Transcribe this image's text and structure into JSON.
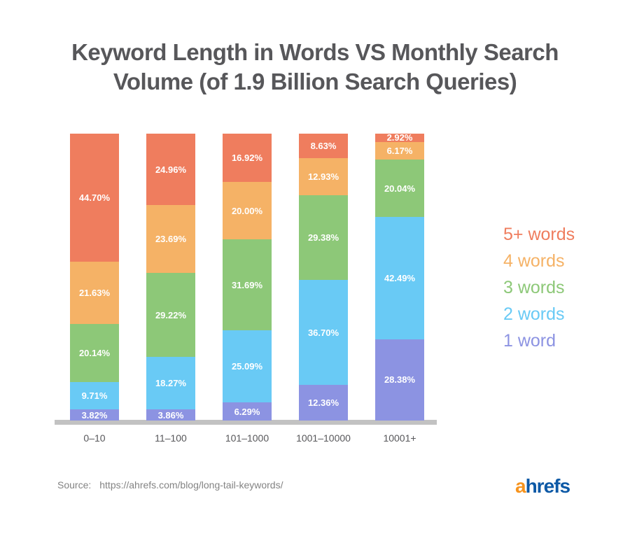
{
  "title": {
    "lines": [
      "Keyword Length in Words VS Monthly Search",
      "Volume (of 1.9 Billion Search Queries)"
    ]
  },
  "chart_data": {
    "type": "bar",
    "subtype": "stacked-100-percent",
    "title": "Keyword Length in Words VS Monthly Search Volume (of 1.9 Billion Search Queries)",
    "xlabel": "",
    "ylabel": "",
    "ylim": [
      0,
      100
    ],
    "grid": false,
    "legend_position": "right",
    "value_suffix": "%",
    "categories": [
      "0–10",
      "11–100",
      "101–1000",
      "1001–10000",
      "10001+"
    ],
    "series": [
      {
        "name": "1 word",
        "color": "#8c93e2",
        "values": [
          3.82,
          3.86,
          6.29,
          12.36,
          28.38
        ]
      },
      {
        "name": "2 words",
        "color": "#69caf5",
        "values": [
          9.71,
          18.27,
          25.09,
          36.7,
          42.49
        ]
      },
      {
        "name": "3 words",
        "color": "#8dc878",
        "values": [
          20.14,
          29.22,
          31.69,
          29.38,
          20.04
        ]
      },
      {
        "name": "4 words",
        "color": "#f5b266",
        "values": [
          21.63,
          23.69,
          20.0,
          12.93,
          6.17
        ]
      },
      {
        "name": "5+ words",
        "color": "#ef7d5e",
        "values": [
          44.7,
          24.96,
          16.92,
          8.63,
          2.92
        ]
      }
    ]
  },
  "legend": {
    "items": [
      {
        "label": "5+ words",
        "color": "#ef7d5e"
      },
      {
        "label": "4 words",
        "color": "#f5b266"
      },
      {
        "label": "3 words",
        "color": "#8dc878"
      },
      {
        "label": "2 words",
        "color": "#69caf5"
      },
      {
        "label": "1 word",
        "color": "#8c93e2"
      }
    ]
  },
  "footer": {
    "source_label": "Source:",
    "source_url": "https://ahrefs.com/blog/long-tail-keywords/",
    "logo": {
      "part1": "a",
      "part1_color": "#f7941e",
      "part2": "hrefs",
      "part2_color": "#0d59a6"
    }
  },
  "colors": {
    "axis": "#c2c2c2",
    "title_text": "#57575a",
    "bar_label_text": "#ffffff",
    "source_text": "#838383",
    "background": "#ffffff"
  }
}
